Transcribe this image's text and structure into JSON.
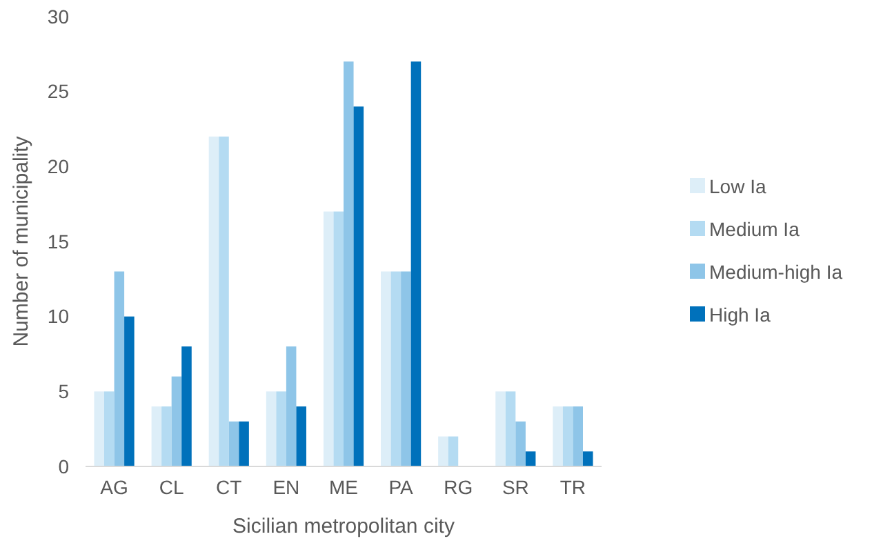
{
  "chart_data": {
    "type": "bar",
    "xlabel": "Sicilian metropolitan city",
    "ylabel": "Number of municipality",
    "categories": [
      "AG",
      "CL",
      "CT",
      "EN",
      "ME",
      "PA",
      "RG",
      "SR",
      "TR"
    ],
    "series": [
      {
        "name": "Low Ia",
        "color": "#ddeef8",
        "values": [
          5,
          4,
          22,
          5,
          17,
          13,
          2,
          5,
          4
        ]
      },
      {
        "name": "Medium Ia",
        "color": "#b4dbf2",
        "values": [
          5,
          4,
          22,
          5,
          17,
          13,
          2,
          5,
          4
        ]
      },
      {
        "name": "Medium-high Ia",
        "color": "#8ec5e8",
        "values": [
          13,
          6,
          3,
          8,
          27,
          13,
          0,
          3,
          4
        ]
      },
      {
        "name": "High Ia",
        "color": "#0071bb",
        "values": [
          10,
          8,
          3,
          4,
          24,
          27,
          0,
          1,
          1
        ]
      }
    ],
    "ylim": [
      0,
      30
    ],
    "yticks": [
      0,
      5,
      10,
      15,
      20,
      25,
      30
    ],
    "grid": false,
    "legend": "right"
  }
}
